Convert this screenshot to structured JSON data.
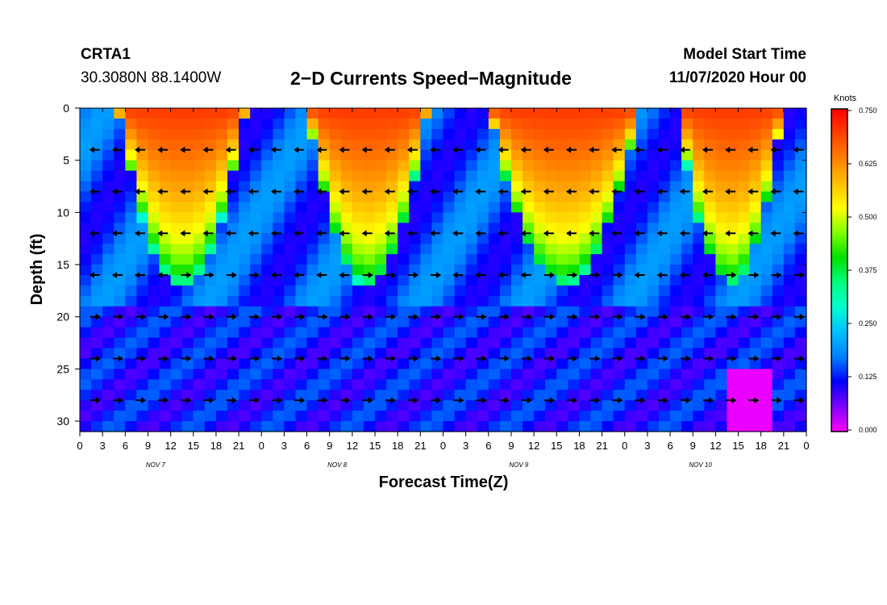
{
  "header": {
    "station": "CRTA1",
    "coords": "30.3080N 88.1400W",
    "title": "2−D Currents Speed−Magnitude",
    "model_start_label": "Model Start Time",
    "model_start_value": "11/07/2020 Hour 00"
  },
  "chart_data": {
    "type": "heatmap",
    "title": "2−D Currents Speed−Magnitude",
    "xlabel": "Forecast Time(Z)",
    "ylabel": "Depth (ft)",
    "x_tick_labels": [
      "0",
      "3",
      "6",
      "9",
      "12",
      "15",
      "18",
      "21",
      "0",
      "3",
      "6",
      "9",
      "12",
      "15",
      "18",
      "21",
      "0",
      "3",
      "6",
      "9",
      "12",
      "15",
      "18",
      "21",
      "0",
      "3",
      "6",
      "9",
      "12",
      "15",
      "18",
      "21",
      "0"
    ],
    "date_labels": [
      "NOV 7",
      "NOV 8",
      "NOV 9",
      "NOV 10"
    ],
    "y_ticks": [
      0,
      5,
      10,
      15,
      20,
      25,
      30
    ],
    "ylim": [
      0,
      31
    ],
    "xlim_hours": [
      0,
      96
    ],
    "colorbar": {
      "unit": "Knots",
      "ticks": [
        "0.750",
        "0.625",
        "0.500",
        "0.375",
        "0.250",
        "0.125",
        "0.000"
      ],
      "range": [
        0,
        0.75
      ],
      "colors": [
        "#ff00ff",
        "#8000ff",
        "#0000ff",
        "#0080ff",
        "#00c0ff",
        "#00ffd0",
        "#00ff80",
        "#00e000",
        "#80ff00",
        "#ffff00",
        "#ffc000",
        "#ff8000",
        "#ff4000",
        "#ff0000"
      ]
    },
    "surface_high_speed_periods_hours": [
      [
        7,
        20
      ],
      [
        32,
        44
      ],
      [
        56,
        72
      ],
      [
        81,
        91
      ]
    ],
    "speed_knots_max": 0.75,
    "speed_knots_min": 0.0,
    "arrow_depths_ft": [
      4,
      8,
      12,
      16,
      20,
      24,
      28
    ],
    "arrow_times_hours": [
      2,
      5,
      8,
      11,
      14,
      17,
      20,
      23,
      26,
      29,
      32,
      35,
      38,
      41,
      44,
      47,
      50,
      53,
      56,
      59,
      62,
      65,
      68,
      71,
      74,
      77,
      80,
      83,
      86,
      89,
      92,
      95
    ],
    "arrow_direction_notes": "surface layers (4-12 ft) flow west; deeper layers (20-28 ft) flow east"
  }
}
